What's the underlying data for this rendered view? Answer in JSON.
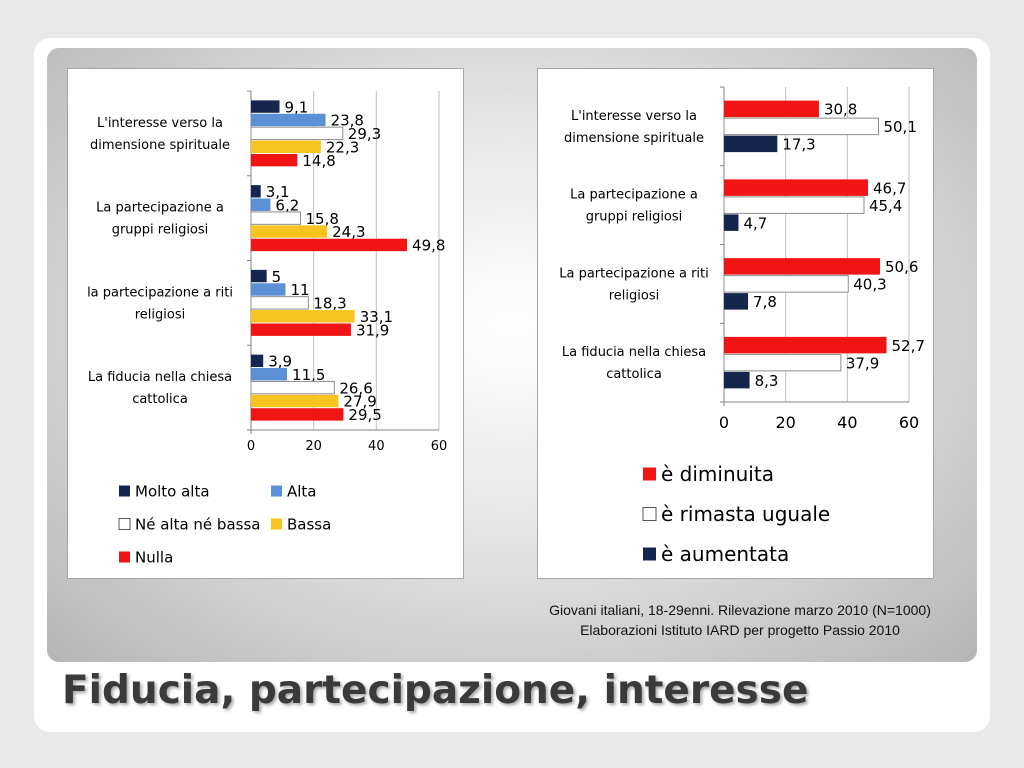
{
  "slide": {
    "title": "Fiducia, partecipazione, interesse",
    "source_line1": "Giovani italiani, 18-29enni. Rilevazione marzo 2010 (N=1000)",
    "source_line2": "Elaborazioni Istituto IARD per progetto Passio 2010"
  },
  "chart_data": [
    {
      "type": "bar",
      "orientation": "horizontal",
      "categories": [
        "L'interesse verso la dimensione spirituale",
        "La partecipazione a gruppi religiosi",
        "la partecipazione a riti religiosi",
        "La fiducia nella chiesa cattolica"
      ],
      "category_lines": [
        [
          "L'interesse verso la",
          "dimensione spirituale"
        ],
        [
          "La partecipazione a",
          "gruppi religiosi"
        ],
        [
          "la partecipazione a riti",
          "religiosi"
        ],
        [
          "La fiducia nella chiesa",
          "cattolica"
        ]
      ],
      "series": [
        {
          "name": "Molto alta",
          "color": "#14264d",
          "values": [
            9.1,
            3.1,
            5,
            3.9
          ],
          "labels": [
            "9,1",
            "3,1",
            "5",
            "3,9"
          ]
        },
        {
          "name": "Alta",
          "color": "#5b8fd6",
          "values": [
            23.8,
            6.2,
            11,
            11.5
          ],
          "labels": [
            "23,8",
            "6,2",
            "11",
            "11,5"
          ]
        },
        {
          "name": "Né alta né bassa",
          "color": "#ffffff",
          "values": [
            29.3,
            15.8,
            18.3,
            26.6
          ],
          "labels": [
            "29,3",
            "15,8",
            "18,3",
            "26,6"
          ]
        },
        {
          "name": "Bassa",
          "color": "#f7c41f",
          "values": [
            22.3,
            24.3,
            33.1,
            27.9
          ],
          "labels": [
            "22,3",
            "24,3",
            "33,1",
            "27,9"
          ]
        },
        {
          "name": "Nulla",
          "color": "#f01414",
          "values": [
            14.8,
            49.8,
            31.9,
            29.5
          ],
          "labels": [
            "14,8",
            "49,8",
            "31,9",
            "29,5"
          ]
        }
      ],
      "xlim": [
        0,
        60
      ],
      "xticks": [
        0,
        20,
        40,
        60
      ],
      "legend_position": "bottom",
      "grid": true
    },
    {
      "type": "bar",
      "orientation": "horizontal",
      "categories": [
        "L'interesse verso la dimensione spirituale",
        "La partecipazione a gruppi religiosi",
        "La partecipazione a riti religiosi",
        "La fiducia nella chiesa cattolica"
      ],
      "category_lines": [
        [
          "L'interesse verso la",
          "dimensione spirituale"
        ],
        [
          "La partecipazione a",
          "gruppi religiosi"
        ],
        [
          "La partecipazione a riti",
          "religiosi"
        ],
        [
          "La fiducia nella chiesa",
          "cattolica"
        ]
      ],
      "series": [
        {
          "name": "è diminuita",
          "color": "#f01414",
          "values": [
            30.8,
            46.7,
            50.6,
            52.7
          ],
          "labels": [
            "30,8",
            "46,7",
            "50,6",
            "52,7"
          ]
        },
        {
          "name": "è rimasta uguale",
          "color": "#ffffff",
          "values": [
            50.1,
            45.4,
            40.3,
            37.9
          ],
          "labels": [
            "50,1",
            "45,4",
            "40,3",
            "37,9"
          ]
        },
        {
          "name": "è aumentata",
          "color": "#14264d",
          "values": [
            17.3,
            4.7,
            7.8,
            8.3
          ],
          "labels": [
            "17,3",
            "4,7",
            "7,8",
            "8,3"
          ]
        }
      ],
      "xlim": [
        0,
        60
      ],
      "xticks": [
        0,
        20,
        40,
        60
      ],
      "legend_position": "bottom",
      "grid": true
    }
  ]
}
